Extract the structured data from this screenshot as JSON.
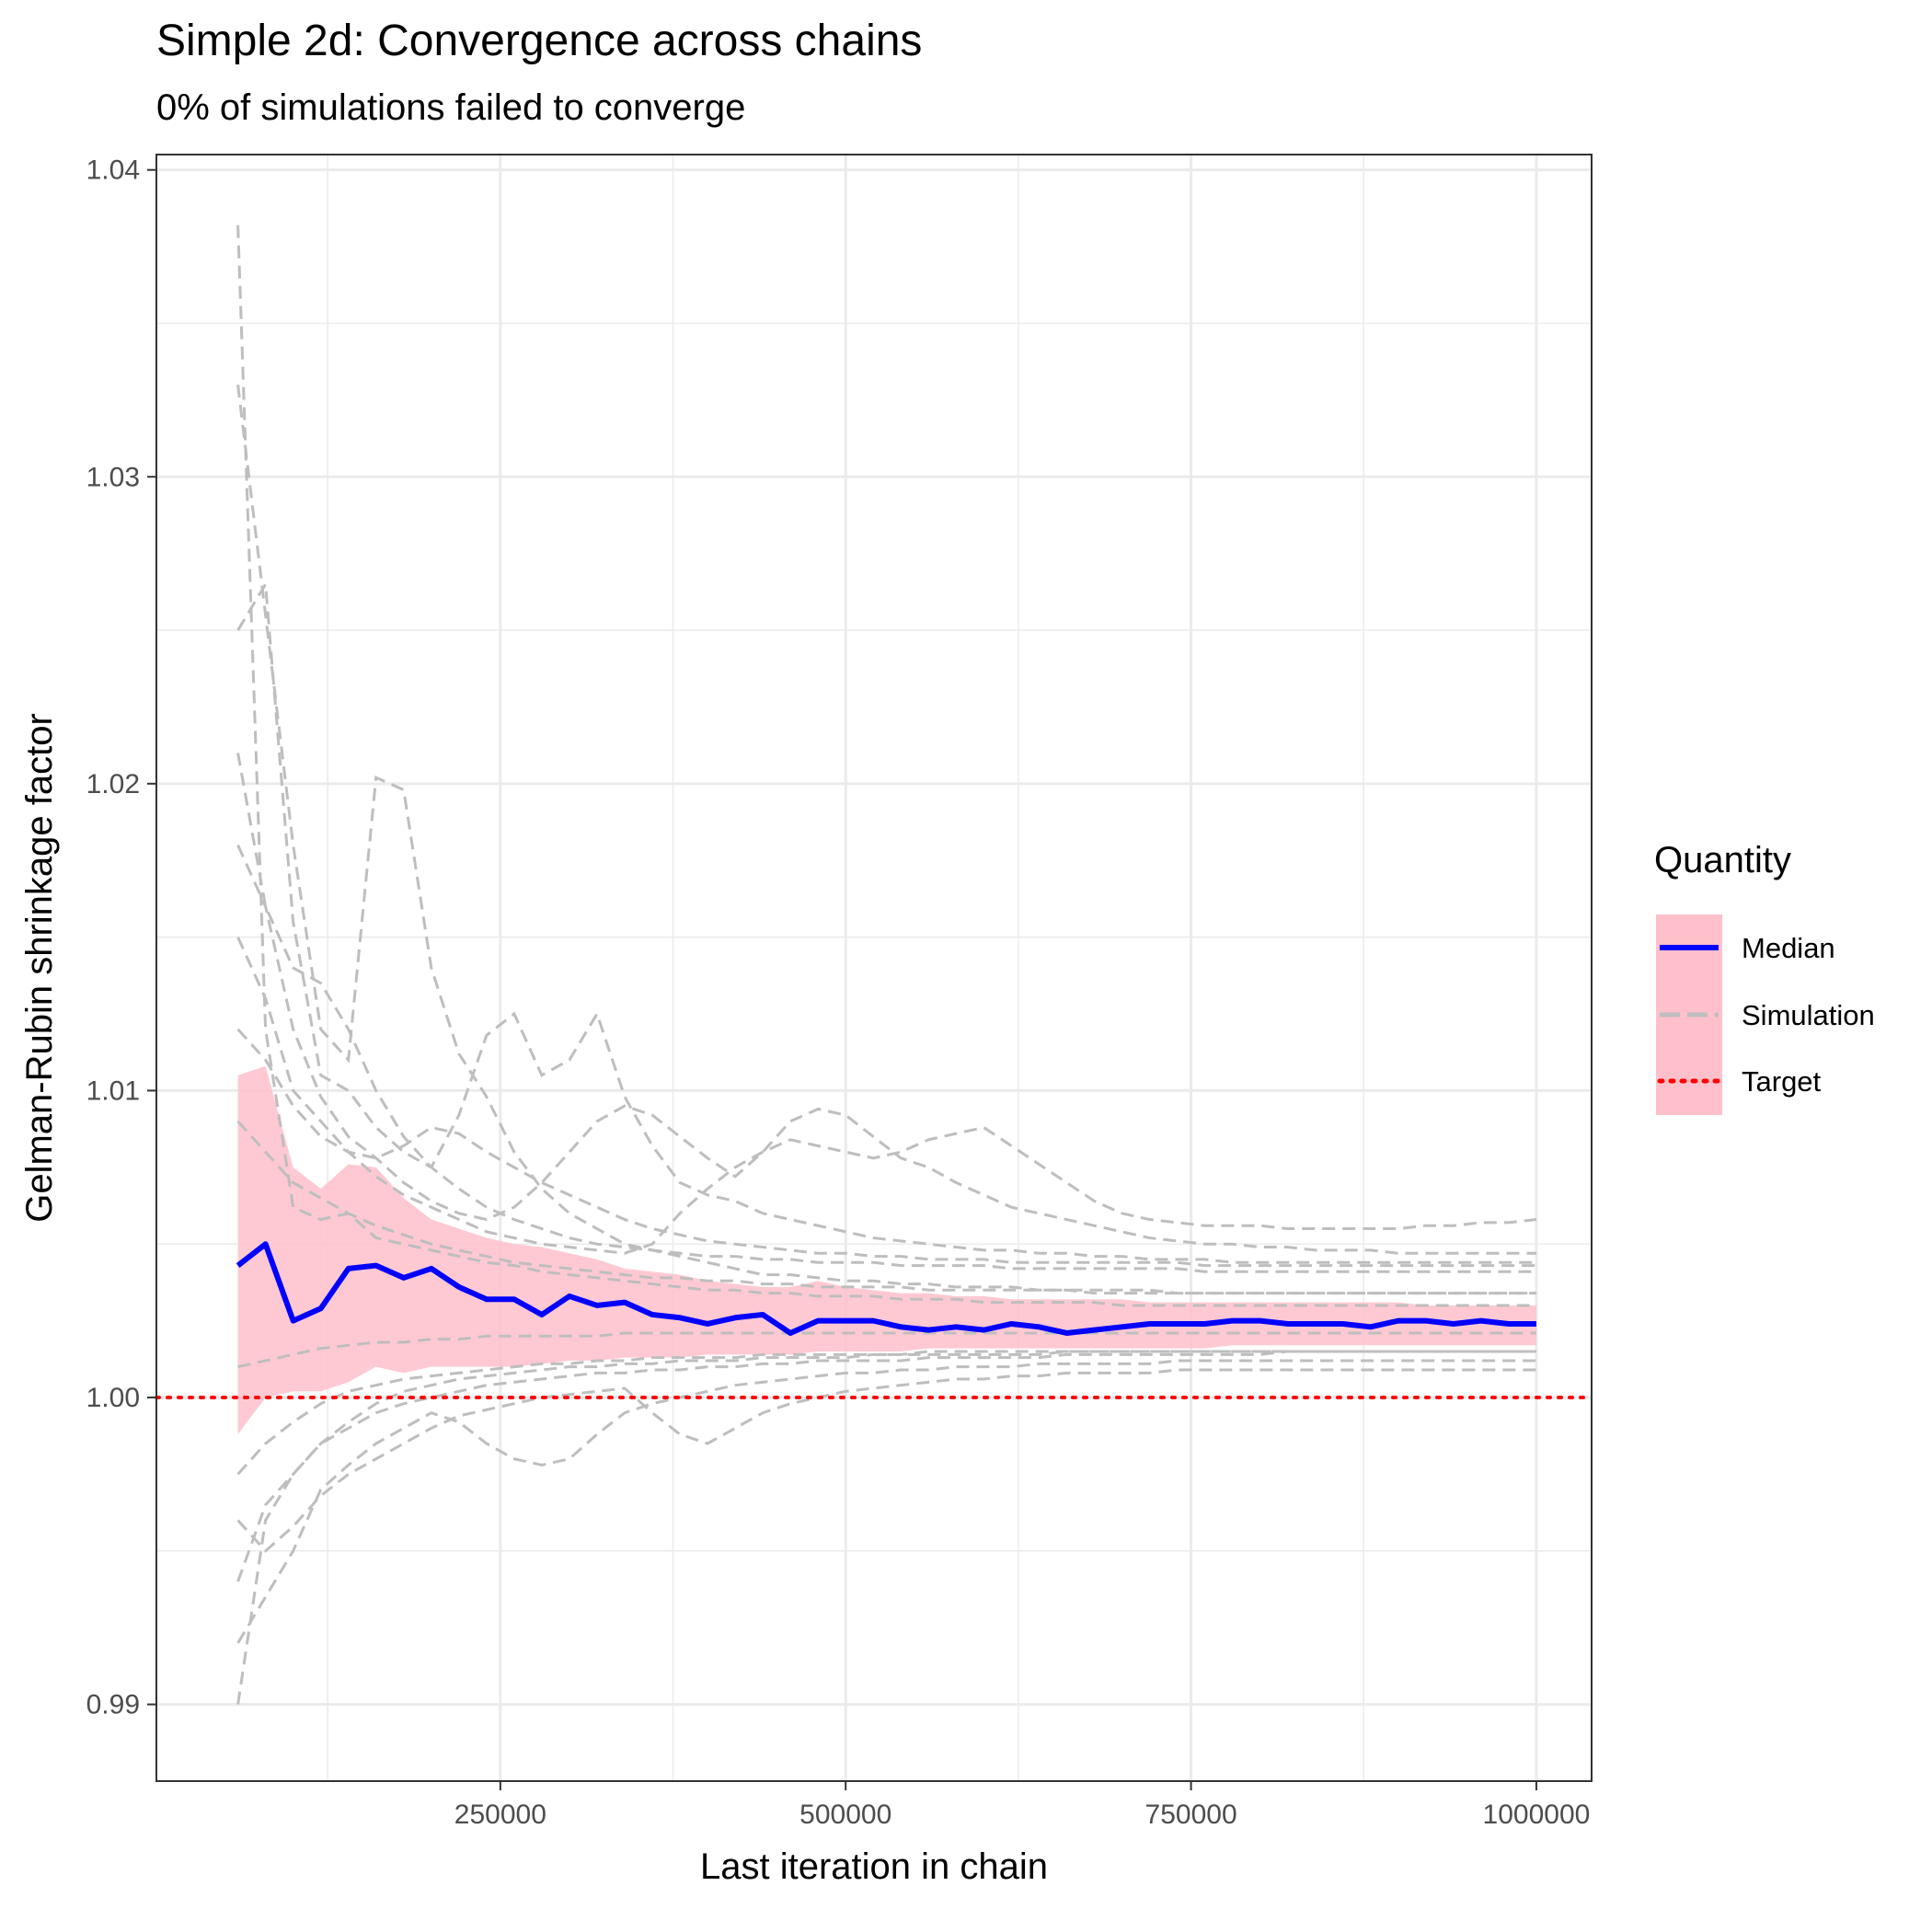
{
  "chart_data": {
    "type": "line",
    "title": "Simple 2d: Convergence across chains",
    "subtitle": "0% of simulations failed to converge",
    "xlabel": "Last iteration in chain",
    "ylabel": "Gelman-Rubin shrinkage factor",
    "xlim": [
      1000,
      1040000
    ],
    "ylim": [
      0.9875,
      1.0405
    ],
    "x_ticks": [
      250000,
      500000,
      750000,
      1000000
    ],
    "x_tick_labels": [
      "250000",
      "500000",
      "750000",
      "1000000"
    ],
    "y_ticks": [
      0.99,
      1.0,
      1.01,
      1.02,
      1.03,
      1.04
    ],
    "y_tick_labels": [
      "0.99",
      "1.00",
      "1.01",
      "1.02",
      "1.03",
      "1.04"
    ],
    "grid": true,
    "legend": {
      "title": "Quantity",
      "position": "right",
      "entries": [
        "Median",
        "Simulation",
        "Target"
      ]
    },
    "colors": {
      "median": "#0000ff",
      "simulation": "#bebebe",
      "target": "#ff0000",
      "band": "#ffc0cb"
    },
    "target_value": 1.0,
    "x": [
      60000,
      80000,
      100000,
      120000,
      140000,
      160000,
      180000,
      200000,
      220000,
      240000,
      260000,
      280000,
      300000,
      320000,
      340000,
      360000,
      380000,
      400000,
      420000,
      440000,
      460000,
      480000,
      500000,
      520000,
      540000,
      560000,
      580000,
      600000,
      620000,
      640000,
      660000,
      680000,
      700000,
      720000,
      740000,
      760000,
      780000,
      800000,
      820000,
      840000,
      860000,
      880000,
      900000,
      920000,
      940000,
      960000,
      980000,
      1000000
    ],
    "median": [
      1.0043,
      1.005,
      1.0025,
      1.0029,
      1.0042,
      1.0043,
      1.0039,
      1.0042,
      1.0036,
      1.0032,
      1.0032,
      1.0027,
      1.0033,
      1.003,
      1.0031,
      1.0027,
      1.0026,
      1.0024,
      1.0026,
      1.0027,
      1.0021,
      1.0025,
      1.0025,
      1.0025,
      1.0023,
      1.0022,
      1.0023,
      1.0022,
      1.0024,
      1.0023,
      1.0021,
      1.0022,
      1.0023,
      1.0024,
      1.0024,
      1.0024,
      1.0025,
      1.0025,
      1.0024,
      1.0024,
      1.0024,
      1.0023,
      1.0025,
      1.0025,
      1.0024,
      1.0025,
      1.0024,
      1.0024
    ],
    "band_upper": [
      1.0105,
      1.0108,
      1.0075,
      1.0068,
      1.0076,
      1.0075,
      1.0065,
      1.0058,
      1.0055,
      1.0052,
      1.005,
      1.0049,
      1.0047,
      1.0045,
      1.0042,
      1.0041,
      1.004,
      1.0038,
      1.0037,
      1.0036,
      1.0036,
      1.0038,
      1.0036,
      1.0035,
      1.0034,
      1.0034,
      1.0033,
      1.0033,
      1.0032,
      1.0032,
      1.0032,
      1.0032,
      1.0032,
      1.0031,
      1.0031,
      1.0031,
      1.0031,
      1.0031,
      1.0031,
      1.0031,
      1.0031,
      1.0031,
      1.0031,
      1.003,
      1.003,
      1.003,
      1.003,
      1.003
    ],
    "band_lower": [
      0.9988,
      1.0,
      1.0002,
      1.0002,
      1.0005,
      1.001,
      1.0008,
      1.001,
      1.001,
      1.001,
      1.001,
      1.0011,
      1.0012,
      1.0012,
      1.0013,
      1.0013,
      1.0013,
      1.0014,
      1.0014,
      1.0014,
      1.0014,
      1.0015,
      1.0015,
      1.0015,
      1.0015,
      1.0016,
      1.0016,
      1.0016,
      1.0016,
      1.0016,
      1.0016,
      1.0016,
      1.0016,
      1.0016,
      1.0016,
      1.0016,
      1.0017,
      1.0017,
      1.0017,
      1.0017,
      1.0017,
      1.0017,
      1.0017,
      1.0017,
      1.0017,
      1.0017,
      1.0017,
      1.0017
    ],
    "simulations": [
      [
        1.0382,
        1.012,
        1.0062,
        1.0058,
        1.006,
        1.0052,
        1.005,
        1.0048,
        1.0046,
        1.0044,
        1.0043,
        1.0041,
        1.004,
        1.0039,
        1.0038,
        1.0037,
        1.0036,
        1.0035,
        1.0035,
        1.0034,
        1.0034,
        1.0033,
        1.0033,
        1.0033,
        1.0032,
        1.0032,
        1.0032,
        1.0031,
        1.0031,
        1.0031,
        1.0031,
        1.0031,
        1.003,
        1.003,
        1.003,
        1.003,
        1.003,
        1.003,
        1.003,
        1.003,
        1.003,
        1.003,
        1.003,
        1.003,
        1.003,
        1.003,
        1.003,
        1.003
      ],
      [
        0.99,
        0.996,
        0.9975,
        0.9985,
        0.999,
        0.9995,
        0.9998,
        1.0,
        1.0002,
        1.0004,
        1.0005,
        1.0006,
        1.0007,
        1.0008,
        1.0008,
        1.0009,
        1.0009,
        1.001,
        1.001,
        1.0011,
        1.0011,
        1.0012,
        1.0012,
        1.0012,
        1.0012,
        1.0013,
        1.0013,
        1.0013,
        1.0013,
        1.0013,
        1.0014,
        1.0014,
        1.0014,
        1.0014,
        1.0014,
        1.0014,
        1.0014,
        1.0014,
        1.0015,
        1.0015,
        1.0015,
        1.0015,
        1.0015,
        1.0015,
        1.0015,
        1.0015,
        1.0015,
        1.0015
      ],
      [
        1.033,
        1.0255,
        1.018,
        1.012,
        1.011,
        1.0202,
        1.0198,
        1.014,
        1.0112,
        1.0098,
        1.008,
        1.0068,
        1.006,
        1.0055,
        1.005,
        1.0048,
        1.0046,
        1.0044,
        1.0042,
        1.004,
        1.004,
        1.0039,
        1.0038,
        1.0038,
        1.0037,
        1.0037,
        1.0036,
        1.0036,
        1.0036,
        1.0035,
        1.0035,
        1.0035,
        1.0035,
        1.0035,
        1.0034,
        1.0034,
        1.0034,
        1.0034,
        1.0034,
        1.0034,
        1.0034,
        1.0034,
        1.0034,
        1.0034,
        1.0034,
        1.0034,
        1.0034,
        1.0034
      ],
      [
        1.025,
        1.0265,
        1.0155,
        1.0105,
        1.01,
        1.0088,
        1.008,
        1.0075,
        1.0092,
        1.0118,
        1.0125,
        1.0105,
        1.011,
        1.0125,
        1.0098,
        1.0082,
        1.007,
        1.0066,
        1.0064,
        1.006,
        1.0058,
        1.0056,
        1.0054,
        1.0052,
        1.0051,
        1.005,
        1.0049,
        1.0048,
        1.0048,
        1.0047,
        1.0047,
        1.0046,
        1.0046,
        1.0045,
        1.0045,
        1.0045,
        1.0044,
        1.0044,
        1.0044,
        1.0044,
        1.0044,
        1.0044,
        1.0044,
        1.0044,
        1.0044,
        1.0044,
        1.0044,
        1.0044
      ],
      [
        1.018,
        1.016,
        1.012,
        1.0098,
        1.0085,
        1.0078,
        1.007,
        1.0064,
        1.006,
        1.0058,
        1.0062,
        1.007,
        1.008,
        1.009,
        1.0095,
        1.0092,
        1.0085,
        1.0078,
        1.0072,
        1.008,
        1.009,
        1.0094,
        1.0092,
        1.0085,
        1.0078,
        1.0075,
        1.007,
        1.0066,
        1.0062,
        1.006,
        1.0058,
        1.0056,
        1.0054,
        1.0052,
        1.0051,
        1.005,
        1.005,
        1.0049,
        1.0049,
        1.0048,
        1.0048,
        1.0048,
        1.0047,
        1.0047,
        1.0047,
        1.0047,
        1.0047,
        1.0047
      ],
      [
        1.015,
        1.013,
        1.01,
        1.009,
        1.008,
        1.0072,
        1.0066,
        1.0062,
        1.0058,
        1.0054,
        1.0052,
        1.005,
        1.0049,
        1.0048,
        1.0047,
        1.005,
        1.006,
        1.0068,
        1.0075,
        1.008,
        1.0084,
        1.0082,
        1.008,
        1.0078,
        1.008,
        1.0084,
        1.0086,
        1.0088,
        1.0082,
        1.0076,
        1.007,
        1.0064,
        1.006,
        1.0058,
        1.0057,
        1.0056,
        1.0056,
        1.0056,
        1.0055,
        1.0055,
        1.0055,
        1.0055,
        1.0055,
        1.0056,
        1.0056,
        1.0057,
        1.0057,
        1.0058
      ],
      [
        0.992,
        0.9935,
        0.995,
        0.997,
        0.9978,
        0.9985,
        0.999,
        0.9995,
        0.9992,
        0.9985,
        0.998,
        0.9978,
        0.998,
        0.9988,
        0.9995,
        0.9998,
        1.0,
        1.0002,
        1.0004,
        1.0005,
        1.0006,
        1.0007,
        1.0008,
        1.0008,
        1.0009,
        1.0009,
        1.001,
        1.001,
        1.001,
        1.0011,
        1.0011,
        1.0011,
        1.0011,
        1.0011,
        1.0012,
        1.0012,
        1.0012,
        1.0012,
        1.0012,
        1.0012,
        1.0012,
        1.0012,
        1.0012,
        1.0012,
        1.0012,
        1.0012,
        1.0012,
        1.0012
      ],
      [
        0.996,
        0.995,
        0.9958,
        0.9968,
        0.9975,
        0.998,
        0.9985,
        0.999,
        0.9994,
        0.9996,
        0.9998,
        1.0,
        1.0001,
        1.0002,
        1.0003,
        0.9995,
        0.9988,
        0.9985,
        0.999,
        0.9995,
        0.9998,
        1.0,
        1.0002,
        1.0003,
        1.0004,
        1.0005,
        1.0006,
        1.0006,
        1.0007,
        1.0007,
        1.0008,
        1.0008,
        1.0008,
        1.0008,
        1.0009,
        1.0009,
        1.0009,
        1.0009,
        1.0009,
        1.0009,
        1.0009,
        1.0009,
        1.0009,
        1.0009,
        1.0009,
        1.0009,
        1.0009,
        1.0009
      ],
      [
        1.021,
        1.016,
        1.014,
        1.0135,
        1.012,
        1.01,
        1.0085,
        1.0075,
        1.0068,
        1.0062,
        1.0058,
        1.0055,
        1.0052,
        1.005,
        1.0049,
        1.0048,
        1.0047,
        1.0046,
        1.0046,
        1.0045,
        1.0045,
        1.0044,
        1.0044,
        1.0044,
        1.0043,
        1.0043,
        1.0043,
        1.0043,
        1.0042,
        1.0042,
        1.0042,
        1.0042,
        1.0042,
        1.0042,
        1.0042,
        1.0041,
        1.0041,
        1.0041,
        1.0041,
        1.0041,
        1.0041,
        1.0041,
        1.0041,
        1.0041,
        1.0041,
        1.0041,
        1.0041,
        1.0041
      ],
      [
        0.994,
        0.9965,
        0.9975,
        0.9985,
        0.9992,
        0.9998,
        1.0002,
        1.0004,
        1.0006,
        1.0007,
        1.0008,
        1.0009,
        1.001,
        1.001,
        1.0011,
        1.0011,
        1.0012,
        1.0012,
        1.0012,
        1.0013,
        1.0013,
        1.0013,
        1.0013,
        1.0014,
        1.0014,
        1.0014,
        1.0014,
        1.0014,
        1.0014,
        1.0014,
        1.0015,
        1.0015,
        1.0015,
        1.0015,
        1.0015,
        1.0015,
        1.0015,
        1.0015,
        1.0015,
        1.0015,
        1.0015,
        1.0015,
        1.0015,
        1.0015,
        1.0015,
        1.0015,
        1.0015,
        1.0015
      ],
      [
        1.009,
        1.008,
        1.007,
        1.0065,
        1.006,
        1.0056,
        1.0053,
        1.005,
        1.0048,
        1.0046,
        1.0044,
        1.0043,
        1.0042,
        1.0041,
        1.004,
        1.0039,
        1.0039,
        1.0038,
        1.0038,
        1.0037,
        1.0037,
        1.0036,
        1.0036,
        1.0036,
        1.0036,
        1.0035,
        1.0035,
        1.0035,
        1.0035,
        1.0035,
        1.0035,
        1.0034,
        1.0034,
        1.0034,
        1.0034,
        1.0034,
        1.0034,
        1.0034,
        1.0034,
        1.0034,
        1.0034,
        1.0034,
        1.0034,
        1.0034,
        1.0034,
        1.0034,
        1.0034,
        1.0034
      ],
      [
        1.001,
        1.0012,
        1.0014,
        1.0016,
        1.0017,
        1.0018,
        1.0018,
        1.0019,
        1.0019,
        1.002,
        1.002,
        1.002,
        1.002,
        1.002,
        1.0021,
        1.0021,
        1.0021,
        1.0021,
        1.0021,
        1.0021,
        1.0021,
        1.0021,
        1.0021,
        1.0021,
        1.0021,
        1.0021,
        1.0021,
        1.0021,
        1.0021,
        1.0021,
        1.0021,
        1.0021,
        1.0021,
        1.0021,
        1.0021,
        1.0021,
        1.0021,
        1.0021,
        1.0021,
        1.0021,
        1.0021,
        1.0021,
        1.0021,
        1.0021,
        1.0021,
        1.0021,
        1.0021,
        1.0021
      ],
      [
        1.012,
        1.011,
        1.0095,
        1.0085,
        1.008,
        1.0078,
        1.0082,
        1.0088,
        1.0086,
        1.008,
        1.0075,
        1.007,
        1.0066,
        1.0062,
        1.0058,
        1.0055,
        1.0053,
        1.0051,
        1.005,
        1.0049,
        1.0048,
        1.0047,
        1.0047,
        1.0046,
        1.0046,
        1.0045,
        1.0045,
        1.0045,
        1.0044,
        1.0044,
        1.0044,
        1.0044,
        1.0044,
        1.0044,
        1.0044,
        1.0043,
        1.0043,
        1.0043,
        1.0043,
        1.0043,
        1.0043,
        1.0043,
        1.0043,
        1.0043,
        1.0043,
        1.0043,
        1.0043,
        1.0043
      ],
      [
        0.9975,
        0.9985,
        0.9992,
        0.9998,
        1.0002,
        1.0004,
        1.0006,
        1.0007,
        1.0008,
        1.0009,
        1.001,
        1.0011,
        1.0011,
        1.0012,
        1.0012,
        1.0013,
        1.0013,
        1.0013,
        1.0013,
        1.0014,
        1.0014,
        1.0014,
        1.0014,
        1.0014,
        1.0014,
        1.0015,
        1.0015,
        1.0015,
        1.0015,
        1.0015,
        1.0015,
        1.0015,
        1.0015,
        1.0015,
        1.0015,
        1.0015,
        1.0015,
        1.0015,
        1.0015,
        1.0015,
        1.0015,
        1.0015,
        1.0015,
        1.0015,
        1.0015,
        1.0015,
        1.0015,
        1.0015
      ]
    ]
  }
}
